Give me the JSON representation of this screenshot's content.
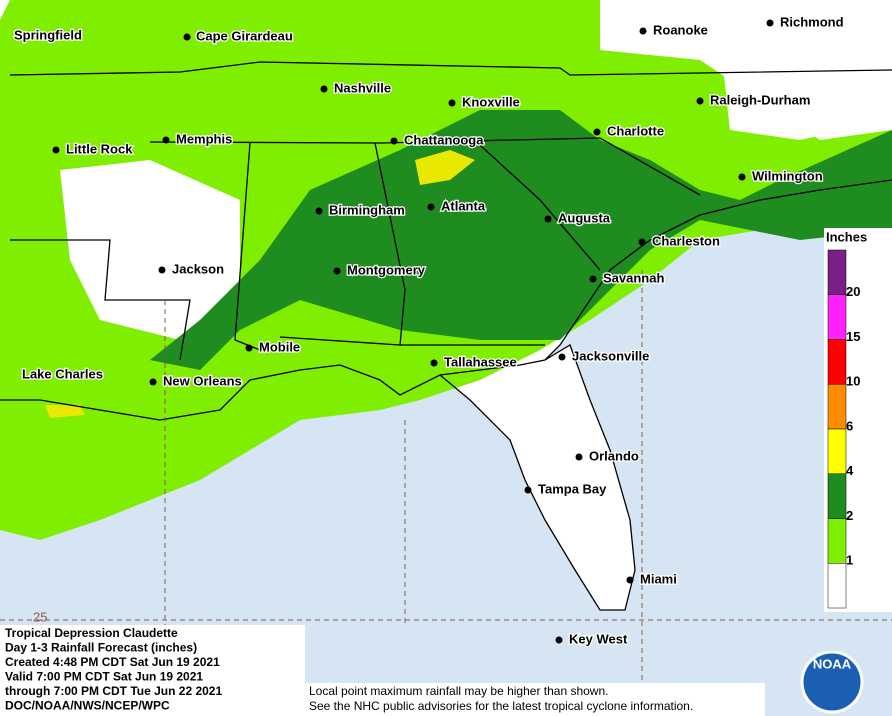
{
  "legend": {
    "title": "Inches",
    "labels": [
      "20",
      "15",
      "10",
      "6",
      "4",
      "2",
      "1"
    ],
    "colors": [
      "#7a1f86",
      "#ff22ff",
      "#ff0000",
      "#ff8c00",
      "#ffff00",
      "#1e8c1e",
      "#80ee00",
      "#ffffff"
    ]
  },
  "cities": [
    "Springfield",
    "Cape Girardeau",
    "Nashville",
    "Knoxville",
    "Roanoke",
    "Richmond",
    "Raleigh-Durham",
    "Charlotte",
    "Little Rock",
    "Memphis",
    "Chattanooga",
    "Wilmington",
    "Birmingham",
    "Atlanta",
    "Augusta",
    "Charleston",
    "Jackson",
    "Montgomery",
    "Savannah",
    "Mobile",
    "Tallahassee",
    "Jacksonville",
    "Lake Charles",
    "New Orleans",
    "Orlando",
    "Tampa Bay",
    "Miami",
    "Key West"
  ],
  "info": [
    "Tropical Depression Claudette",
    "Day 1-3 Rainfall Forecast (inches)",
    "Created 4:48 PM CDT Sat Jun 19 2021",
    "Valid 7:00 PM CDT Sat Jun 19 2021",
    "through 7:00 PM CDT Tue Jun 22 2021",
    "DOC/NOAA/NWS/NCEP/WPC"
  ],
  "note": [
    "Local point maximum rainfall may be higher than shown.",
    "See the NHC public advisories for the latest tropical cyclone information."
  ],
  "latitude_label": "25",
  "logo": "NOAA"
}
